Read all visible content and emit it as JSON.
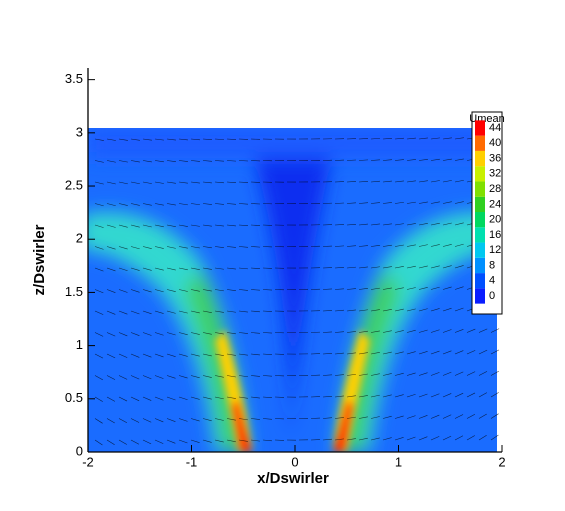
{
  "chart_data": {
    "type": "contour",
    "x_label": "x/Dswirler",
    "y_label": "z/Dswirler",
    "xlim": [
      -2,
      2
    ],
    "xticks": [
      -2,
      -1,
      0,
      1,
      2
    ],
    "ylim": [
      0,
      3.6
    ],
    "yticks": [
      0,
      0.5,
      1,
      1.5,
      2,
      2.5,
      3,
      3.5
    ],
    "colorbar": {
      "title": "Umean",
      "levels": [
        0,
        4,
        8,
        12,
        16,
        20,
        24,
        28,
        32,
        36,
        40,
        44
      ],
      "colors": [
        "#0a1eff",
        "#0050ff",
        "#0090ff",
        "#00c8f0",
        "#00e0b0",
        "#00d860",
        "#30d020",
        "#80e000",
        "#c8f000",
        "#ffd000",
        "#ff6a00",
        "#ff0000"
      ]
    }
  }
}
